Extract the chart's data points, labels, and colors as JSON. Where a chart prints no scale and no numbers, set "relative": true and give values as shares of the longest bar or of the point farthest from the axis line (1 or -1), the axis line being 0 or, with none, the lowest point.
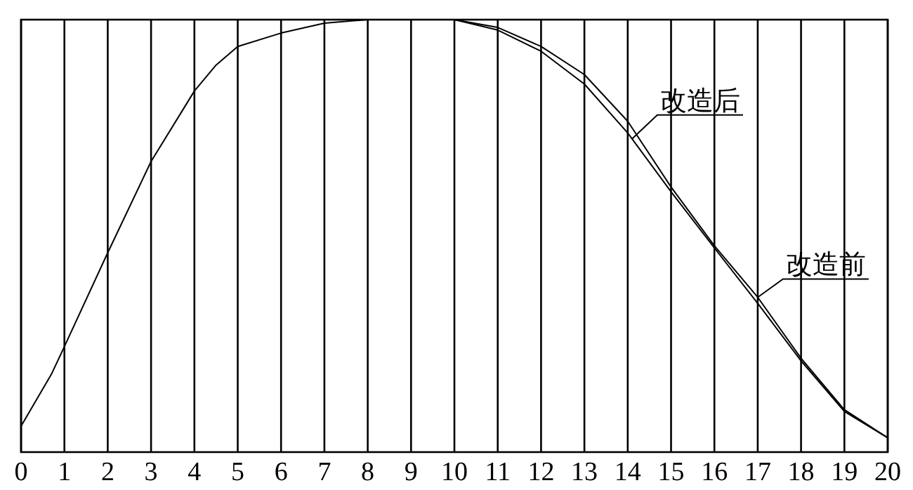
{
  "chart_data": {
    "type": "line",
    "relative": true,
    "xlim": [
      0,
      20
    ],
    "xticks": [
      0,
      1,
      2,
      3,
      4,
      5,
      6,
      7,
      8,
      9,
      10,
      11,
      12,
      13,
      14,
      15,
      16,
      17,
      18,
      19,
      20
    ],
    "grid": "x",
    "line_style": "solid",
    "series": [
      {
        "name": "改造后",
        "color": "#000000",
        "x": [
          0,
          0.7,
          1,
          2,
          3,
          4,
          4.5,
          5,
          6,
          7,
          8,
          9,
          10,
          11,
          12,
          13,
          14,
          15,
          16,
          17,
          18,
          19,
          20
        ],
        "values": [
          0.06,
          0.18,
          0.244,
          0.461,
          0.672,
          0.835,
          0.895,
          0.938,
          0.969,
          0.992,
          1,
          1,
          1,
          0.976,
          0.927,
          0.851,
          0.738,
          0.602,
          0.472,
          0.344,
          0.211,
          0.094,
          0.033
        ]
      },
      {
        "name": "改造前",
        "color": "#000000",
        "x": [
          10,
          11,
          12,
          13,
          14,
          15,
          16,
          17,
          18,
          19,
          20
        ],
        "values": [
          1,
          0.982,
          0.938,
          0.873,
          0.765,
          0.613,
          0.477,
          0.358,
          0.217,
          0.098,
          0.033
        ]
      }
    ]
  }
}
